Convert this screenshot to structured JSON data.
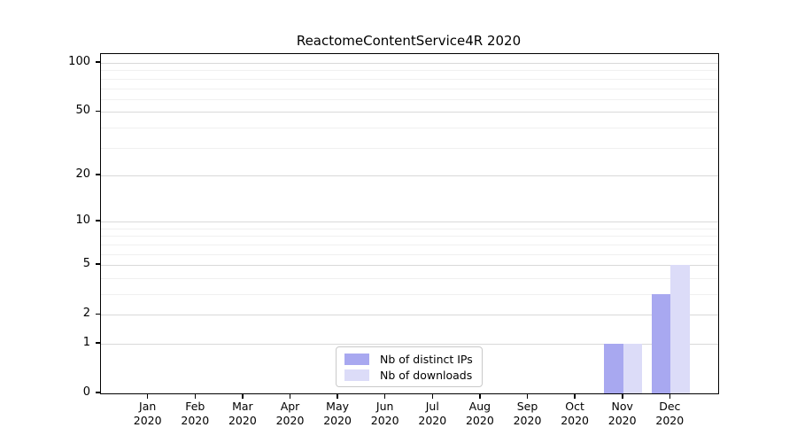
{
  "title": "ReactomeContentService4R 2020",
  "chart_data": {
    "type": "bar",
    "title": "ReactomeContentService4R 2020",
    "categories": [
      "Jan 2020",
      "Feb 2020",
      "Mar 2020",
      "Apr 2020",
      "May 2020",
      "Jun 2020",
      "Jul 2020",
      "Aug 2020",
      "Sep 2020",
      "Oct 2020",
      "Nov 2020",
      "Dec 2020"
    ],
    "series": [
      {
        "name": "Nb of distinct IPs",
        "color": "#a8a8f0",
        "values": [
          0,
          0,
          0,
          0,
          0,
          0,
          0,
          0,
          0,
          0,
          1,
          3
        ]
      },
      {
        "name": "Nb of downloads",
        "color": "#dcdcf8",
        "values": [
          0,
          0,
          0,
          0,
          0,
          0,
          0,
          0,
          0,
          0,
          1,
          5
        ]
      }
    ],
    "xlabel": "",
    "ylabel": "",
    "yscale": "log1p",
    "ytick_values": [
      0,
      1,
      2,
      5,
      10,
      20,
      50,
      100
    ],
    "minor_grid_values": [
      3,
      4,
      6,
      7,
      8,
      9,
      30,
      40,
      60,
      70,
      80,
      90
    ],
    "ylim": [
      0,
      113
    ],
    "grid": "horizontal",
    "legend_position": "lower center",
    "axis_color": "#000000",
    "major_grid_color": "#d9d9d9",
    "minor_grid_color": "#f0f0f0",
    "background_color": "#ffffff"
  }
}
